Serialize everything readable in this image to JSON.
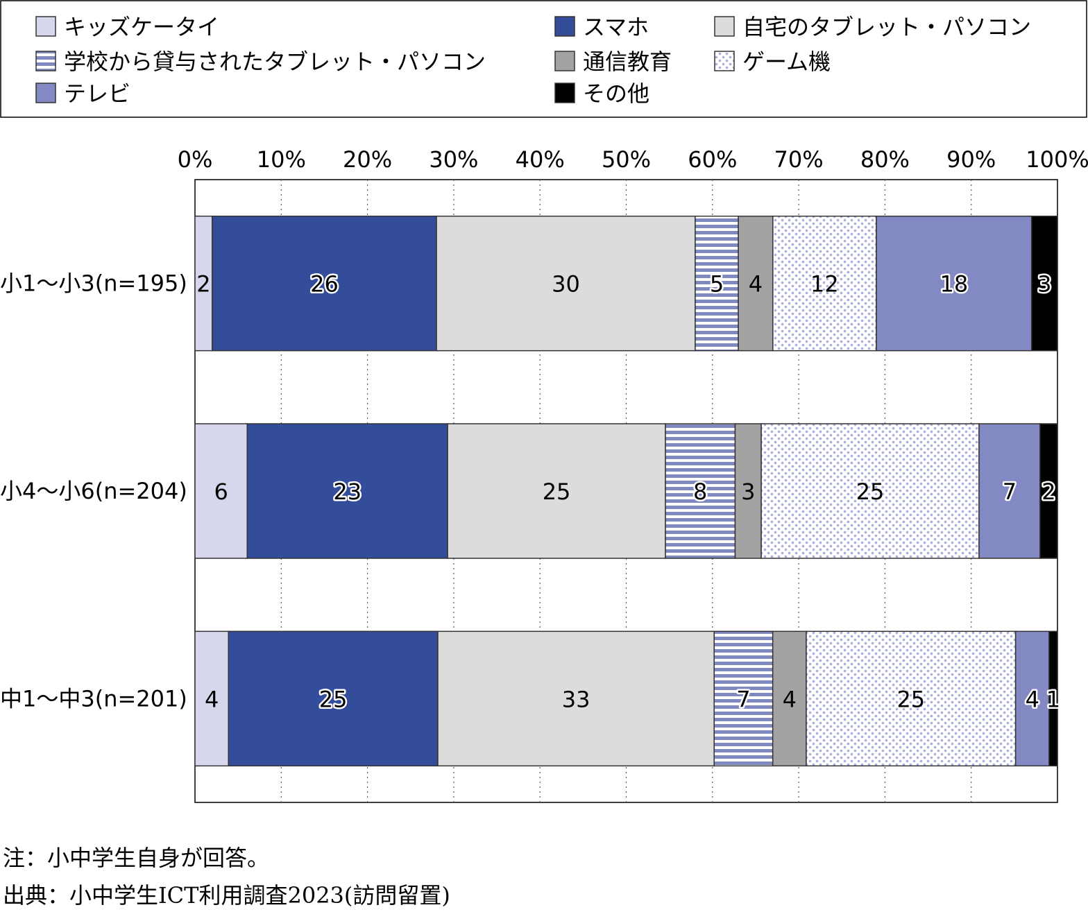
{
  "chart_data": {
    "type": "bar",
    "orientation": "horizontal",
    "stacked": true,
    "percent": true,
    "title": "",
    "xlabel": "",
    "ylabel": "",
    "xlim": [
      0,
      100
    ],
    "x_ticks": [
      "0%",
      "10%",
      "20%",
      "30%",
      "40%",
      "50%",
      "60%",
      "70%",
      "80%",
      "90%",
      "100%"
    ],
    "categories": [
      "小1～小3(n=195)",
      "小4～小6(n=204)",
      "中1～中3(n=201)"
    ],
    "series": [
      {
        "name": "キッズケータイ",
        "values": [
          2,
          6,
          4
        ],
        "color": "#d6d6ec",
        "pattern": "solid"
      },
      {
        "name": "スマホ",
        "values": [
          26,
          23,
          25
        ],
        "color": "#334d9a",
        "pattern": "solid"
      },
      {
        "name": "自宅のタブレット・パソコン",
        "values": [
          30,
          25,
          33
        ],
        "color": "#dcdcdc",
        "pattern": "solid"
      },
      {
        "name": "学校から貸与されたタブレット・パソコン",
        "values": [
          5,
          8,
          7
        ],
        "color": "#8088c0",
        "pattern": "stripes"
      },
      {
        "name": "通信教育",
        "values": [
          4,
          3,
          4
        ],
        "color": "#a3a3a3",
        "pattern": "solid"
      },
      {
        "name": "ゲーム機",
        "values": [
          12,
          25,
          25
        ],
        "color": "#b4b9e0",
        "pattern": "dots"
      },
      {
        "name": "テレビ",
        "values": [
          18,
          7,
          4
        ],
        "color": "#8389c2",
        "pattern": "solid"
      },
      {
        "name": "その他",
        "values": [
          3,
          2,
          1
        ],
        "color": "#000000",
        "pattern": "solid"
      }
    ],
    "grid": true,
    "legend_position": "top"
  },
  "notes": {
    "note1": "注：小中学生自身が回答。",
    "note2": "出典：小中学生ICT利用調査2023(訪問留置)"
  }
}
